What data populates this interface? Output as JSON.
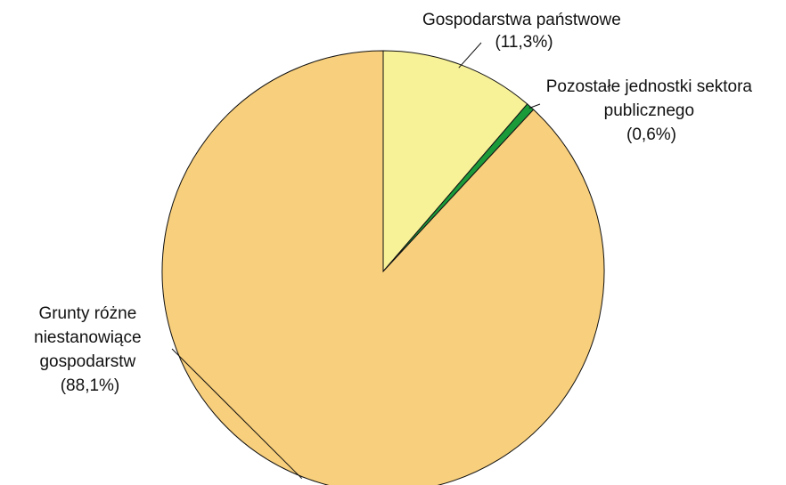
{
  "chart_data": {
    "type": "pie",
    "start_angle_deg": 0,
    "direction": "clockwise",
    "slices": [
      {
        "value": 11.3,
        "color": "#f7f197",
        "label_lines": [
          "Gospodarstwa państwowe",
          "(11,3%)"
        ]
      },
      {
        "value": 0.6,
        "color": "#1b9a3a",
        "label_lines": [
          "Pozostałe jednostki sektora",
          "publicznego",
          "(0,6%)"
        ]
      },
      {
        "value": 88.1,
        "color": "#f8cf7c",
        "label_lines": [
          "Grunty różne",
          "niestanowiące",
          "gospodarstw",
          "(88,1%)"
        ]
      }
    ]
  }
}
